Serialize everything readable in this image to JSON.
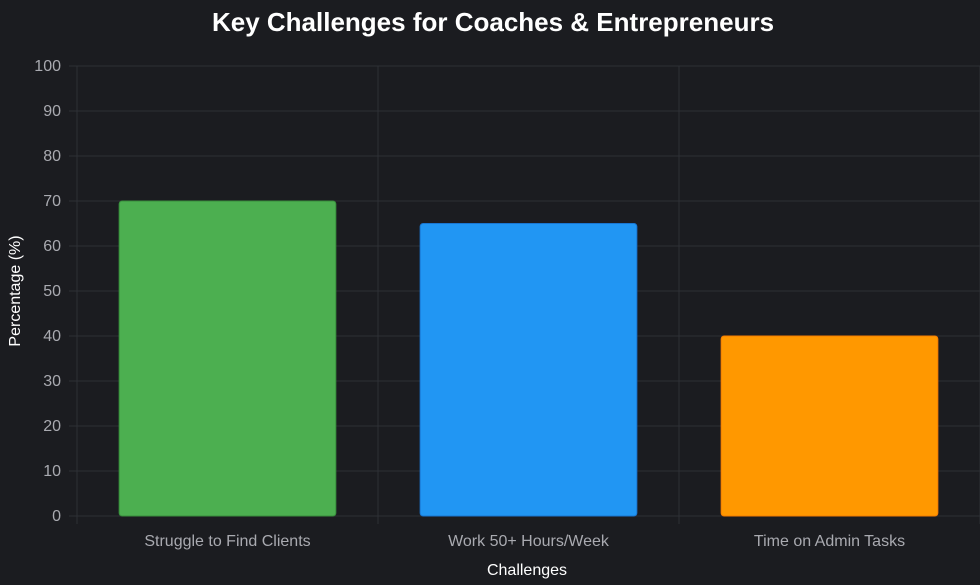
{
  "chart_data": {
    "type": "bar",
    "title": "Key Challenges for Coaches & Entrepreneurs",
    "xlabel": "Challenges",
    "ylabel": "Percentage (%)",
    "categories": [
      "Struggle to Find Clients",
      "Work 50+ Hours/Week",
      "Time on Admin Tasks"
    ],
    "values": [
      70,
      65,
      40
    ],
    "colors": [
      "#4caf50",
      "#2196f3",
      "#ff9800"
    ],
    "border_colors": [
      "#388e3c",
      "#1976d2",
      "#f57c00"
    ],
    "ylim": [
      0,
      100
    ],
    "yticks": [
      0,
      10,
      20,
      30,
      40,
      50,
      60,
      70,
      80,
      90,
      100
    ],
    "grid": true,
    "legend": "none",
    "background": "#1b1c20"
  }
}
